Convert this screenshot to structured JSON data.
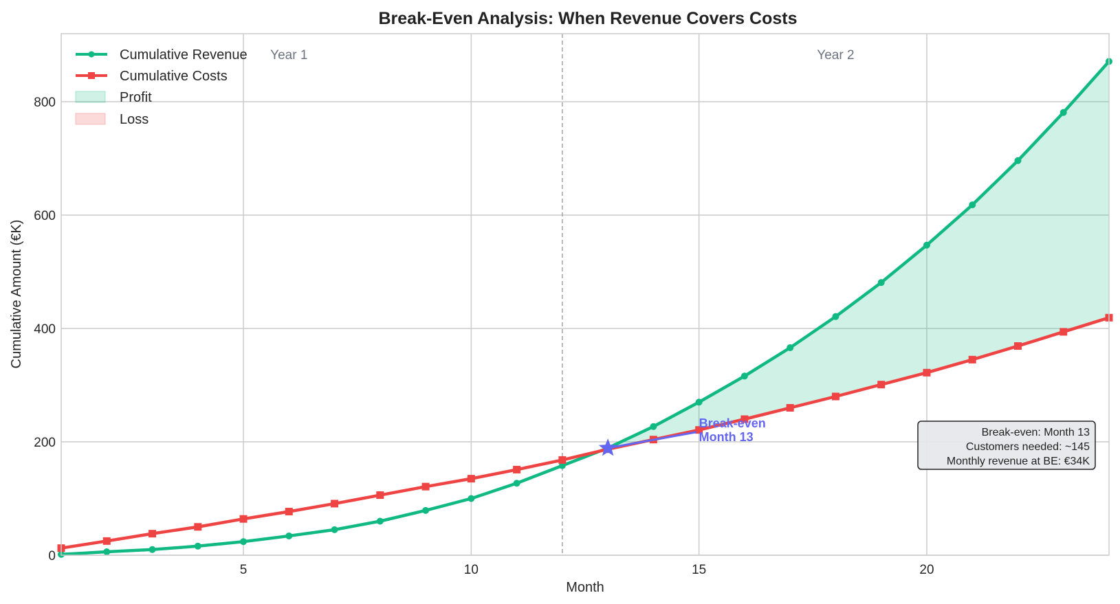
{
  "chart_data": {
    "type": "line",
    "title": "Break-Even Analysis: When Revenue Covers Costs",
    "xlabel": "Month",
    "ylabel": "Cumulative Amount (€K)",
    "xlim": [
      1,
      24
    ],
    "ylim": [
      0,
      920
    ],
    "xticks": [
      5,
      10,
      15,
      20
    ],
    "yticks": [
      0,
      200,
      400,
      600,
      800
    ],
    "grid": true,
    "legend_position": "top-left",
    "x": [
      1,
      2,
      3,
      4,
      5,
      6,
      7,
      8,
      9,
      10,
      11,
      12,
      13,
      14,
      15,
      16,
      17,
      18,
      19,
      20,
      21,
      22,
      23,
      24
    ],
    "series": [
      {
        "name": "Cumulative Revenue",
        "color": "#10b981",
        "marker": "circle",
        "values": [
          1.5,
          6,
          10,
          16,
          24,
          34,
          45,
          60,
          79,
          100,
          127,
          158,
          189,
          227,
          270,
          316,
          366,
          421,
          481,
          547,
          618,
          696,
          781,
          871
        ]
      },
      {
        "name": "Cumulative Costs",
        "color": "#ef4444",
        "marker": "square",
        "values": [
          12.5,
          25,
          38,
          50,
          64,
          77,
          91,
          106,
          121,
          135,
          151,
          168,
          187,
          204,
          221,
          240,
          260,
          280,
          301,
          322,
          345,
          369,
          394,
          419
        ]
      }
    ],
    "fills": [
      {
        "name": "Profit",
        "color": "#10b981",
        "where": "revenue > costs"
      },
      {
        "name": "Loss",
        "color": "#ef4444",
        "where": "revenue < costs"
      }
    ],
    "annotations": {
      "year_divider_month": 12,
      "year1_label": "Year 1",
      "year2_label": "Year 2",
      "break_even": {
        "month": 13,
        "value": 189,
        "color": "#6366f1",
        "line1": "Break-even",
        "line2": "Month 13",
        "text_month": 15,
        "text_value": 222
      },
      "info_box": [
        "Break-even: Month 13",
        "Customers needed: ~145",
        "Monthly revenue at BE: €34K"
      ]
    }
  }
}
